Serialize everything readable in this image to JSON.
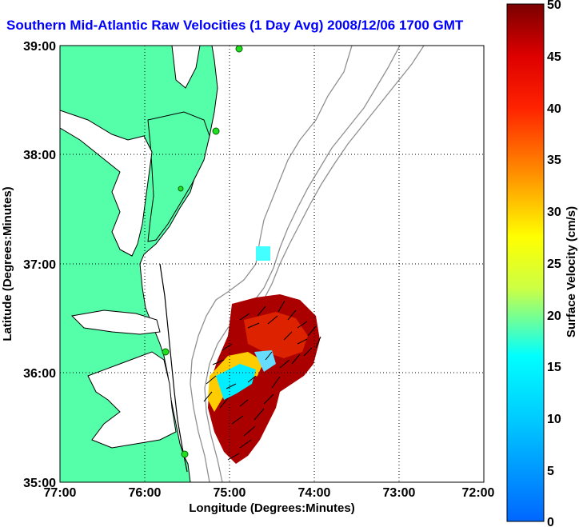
{
  "title": "Southern Mid-Atlantic Raw Velocities (1 Day Avg) 2008/12/06 1700 GMT",
  "map": {
    "x_axis": {
      "label": "Longitude (Degrees:Minutes)",
      "ticks": [
        "77:00",
        "76:00",
        "75:00",
        "74:00",
        "73:00",
        "72:00"
      ]
    },
    "y_axis": {
      "label": "Latitude (Degrees:Minutes)",
      "ticks": [
        "39:00",
        "38:00",
        "37:00",
        "36:00",
        "35:00"
      ]
    },
    "grid": "dotted",
    "colors": {
      "land": "#55ffaa",
      "water": "#ffffff",
      "bathymetry": "#909090",
      "coast": "#000000",
      "stations": "#22dd22"
    }
  },
  "colorbar": {
    "label": "Surface Velocity (cm/s)",
    "ticks": [
      "50",
      "45",
      "40",
      "35",
      "30",
      "25",
      "20",
      "15",
      "10",
      "5",
      "0"
    ],
    "min": 0,
    "max": 50
  }
}
